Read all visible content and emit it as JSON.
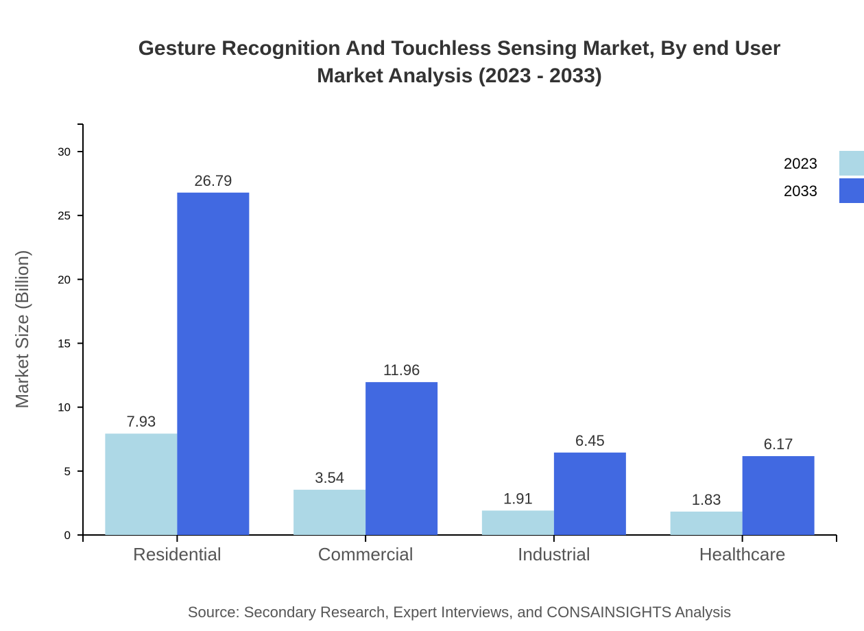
{
  "chart_data": {
    "type": "bar",
    "title": [
      "Gesture Recognition And Touchless Sensing Market, By end User",
      "Market Analysis (2023 - 2033)"
    ],
    "xlabel": "",
    "ylabel": "Market Size (Billion)",
    "ylim": [
      0,
      32
    ],
    "yticks": [
      0,
      5,
      10,
      15,
      20,
      25,
      30
    ],
    "categories": [
      "Residential",
      "Commercial",
      "Industrial",
      "Healthcare"
    ],
    "series": [
      {
        "name": "2023",
        "color": "#add8e6",
        "values": [
          7.93,
          3.54,
          1.91,
          1.83
        ]
      },
      {
        "name": "2033",
        "color": "#4169e1",
        "values": [
          26.79,
          11.96,
          6.45,
          6.17
        ]
      }
    ],
    "legend_position": "top-right",
    "grid": false,
    "source": "Source: Secondary Research, Expert Interviews, and CONSAINSIGHTS Analysis"
  }
}
